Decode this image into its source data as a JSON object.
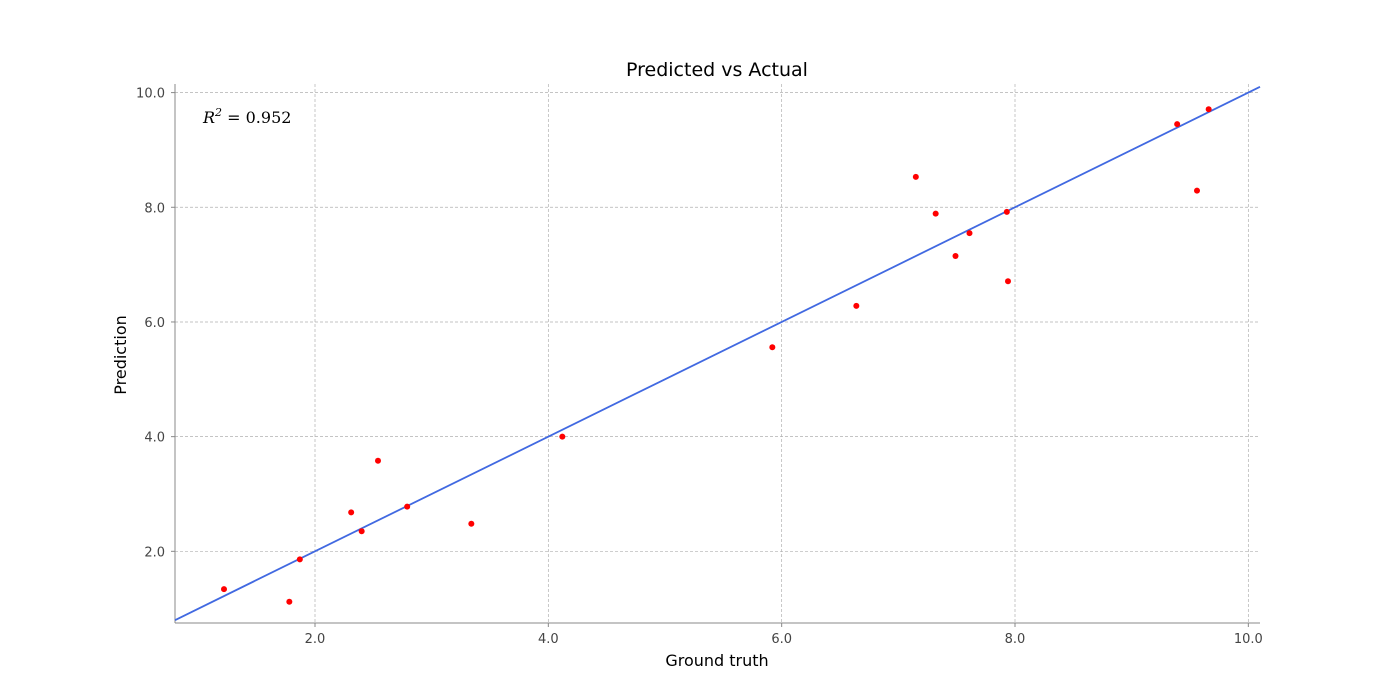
{
  "chart_data": {
    "type": "scatter",
    "title": "Predicted vs Actual",
    "xlabel": "Ground truth",
    "ylabel": "Prediction",
    "xlim": [
      0.8,
      10.1
    ],
    "ylim": [
      0.75,
      10.15
    ],
    "xticks": [
      2.0,
      4.0,
      6.0,
      8.0,
      10.0
    ],
    "xtick_labels": [
      "2.0",
      "4.0",
      "6.0",
      "8.0",
      "10.0"
    ],
    "yticks": [
      2.0,
      4.0,
      6.0,
      8.0,
      10.0
    ],
    "ytick_labels": [
      "2.0",
      "4.0",
      "6.0",
      "8.0",
      "10.0"
    ],
    "grid": true,
    "annotation": {
      "prefix": "R",
      "superscript": "2",
      "rest": " = 0.952"
    },
    "points": {
      "x": [
        1.22,
        1.78,
        1.87,
        2.31,
        2.4,
        2.54,
        2.79,
        3.34,
        4.12,
        5.92,
        6.64,
        7.15,
        7.32,
        7.49,
        7.61,
        7.93,
        7.94,
        9.39,
        9.56,
        9.66
      ],
      "y": [
        1.34,
        1.12,
        1.86,
        2.68,
        2.35,
        3.58,
        2.78,
        2.48,
        4.0,
        5.56,
        6.28,
        8.53,
        7.89,
        7.15,
        7.55,
        7.92,
        6.71,
        9.45,
        8.29,
        9.71
      ],
      "color": "#ff0000"
    },
    "fit_line": {
      "slope": 1.0,
      "intercept": 0.0,
      "color": "#4169e1"
    },
    "grid_color": "#b0b0b0",
    "axis_color": "#888888"
  }
}
